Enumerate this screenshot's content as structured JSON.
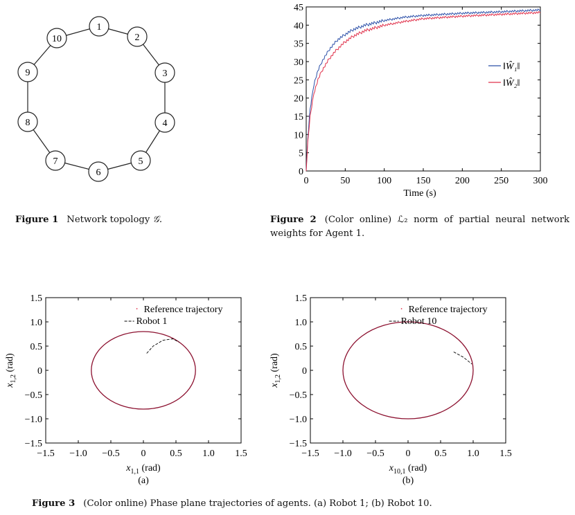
{
  "figure1": {
    "caption_label": "Figure 1",
    "caption_text": "Network topology",
    "caption_symbol": "𝒢.",
    "nodes": [
      "1",
      "2",
      "3",
      "4",
      "5",
      "6",
      "7",
      "8",
      "9",
      "10"
    ]
  },
  "figure2": {
    "caption_label": "Figure 2",
    "caption_text": "(Color online) ℒ₂ norm of partial neural network weights for Agent 1."
  },
  "figure3": {
    "caption_label": "Figure 3",
    "caption_text": "(Color online) Phase plane trajectories of agents. (a) Robot 1; (b) Robot 10.",
    "panel_a": "(a)",
    "panel_b": "(b)"
  },
  "colors": {
    "blue": "#2b4fa8",
    "red": "#e0304a",
    "ellipse": "#8b0f2e",
    "black": "#000000"
  },
  "chart_data": [
    {
      "type": "line",
      "xlabel": "Time (s)",
      "ylabel": "",
      "xlim": [
        0,
        300
      ],
      "ylim": [
        0,
        45
      ],
      "xticks": [
        "0",
        "50",
        "100",
        "150",
        "200",
        "250",
        "300"
      ],
      "yticks": [
        "0",
        "5",
        "10",
        "15",
        "20",
        "25",
        "30",
        "35",
        "40",
        "45"
      ],
      "legend": "right",
      "series": [
        {
          "name": "‖Ŵ₁‖",
          "color": "#2b4fa8",
          "x": [
            0,
            2,
            5,
            10,
            15,
            20,
            30,
            40,
            50,
            60,
            75,
            100,
            125,
            150,
            200,
            250,
            300
          ],
          "y": [
            0,
            9,
            17,
            24,
            27.5,
            30,
            33.5,
            36,
            37.5,
            38.8,
            40,
            41.3,
            42.2,
            42.7,
            43.3,
            43.7,
            44.2
          ]
        },
        {
          "name": "‖Ŵ₂‖",
          "color": "#e0304a",
          "x": [
            0,
            2,
            5,
            10,
            15,
            20,
            30,
            40,
            50,
            60,
            75,
            100,
            125,
            150,
            200,
            250,
            300
          ],
          "y": [
            0,
            8,
            15,
            21.5,
            25,
            27.5,
            31,
            33.5,
            35.5,
            37,
            38.5,
            40,
            41,
            41.8,
            42.5,
            43,
            43.5
          ]
        }
      ]
    },
    {
      "type": "line",
      "panel": "(a)",
      "xlabel": "x1,1 (rad)",
      "ylabel": "x1,2 (rad)",
      "xlim": [
        -1.5,
        1.5
      ],
      "ylim": [
        -1.5,
        1.5
      ],
      "xticks": [
        "−1.5",
        "−1.0",
        "−0.5",
        "0",
        "0.5",
        "1.0",
        "1.5"
      ],
      "yticks": [
        "−1.5",
        "−1.0",
        "−0.5",
        "0",
        "0.5",
        "1.0",
        "1.5"
      ],
      "legend": "top-right",
      "series": [
        {
          "name": "Reference trajectory",
          "shape": "circle",
          "radius": 0.8,
          "center": [
            0,
            0
          ]
        },
        {
          "name": "Robot 1",
          "x": [
            0.05,
            0.15,
            0.3,
            0.45,
            0.55
          ],
          "y": [
            0.35,
            0.5,
            0.62,
            0.65,
            0.58
          ]
        }
      ]
    },
    {
      "type": "line",
      "panel": "(b)",
      "xlabel": "x10,1 (rad)",
      "ylabel": "x1,2 (rad)",
      "xlim": [
        -1.5,
        1.5
      ],
      "ylim": [
        -1.5,
        1.5
      ],
      "xticks": [
        "−1.5",
        "−1.0",
        "−0.5",
        "0",
        "0.5",
        "1.0",
        "1.5"
      ],
      "yticks": [
        "−1.5",
        "−1.0",
        "−0.5",
        "0",
        "0.5",
        "1.0",
        "1.5"
      ],
      "legend": "top-right",
      "series": [
        {
          "name": "Reference trajectory",
          "shape": "circle",
          "radius": 1.0,
          "center": [
            0,
            0
          ]
        },
        {
          "name": "Robot 10",
          "x": [
            0.7,
            0.85,
            0.98
          ],
          "y": [
            0.38,
            0.27,
            0.13
          ]
        }
      ]
    }
  ]
}
